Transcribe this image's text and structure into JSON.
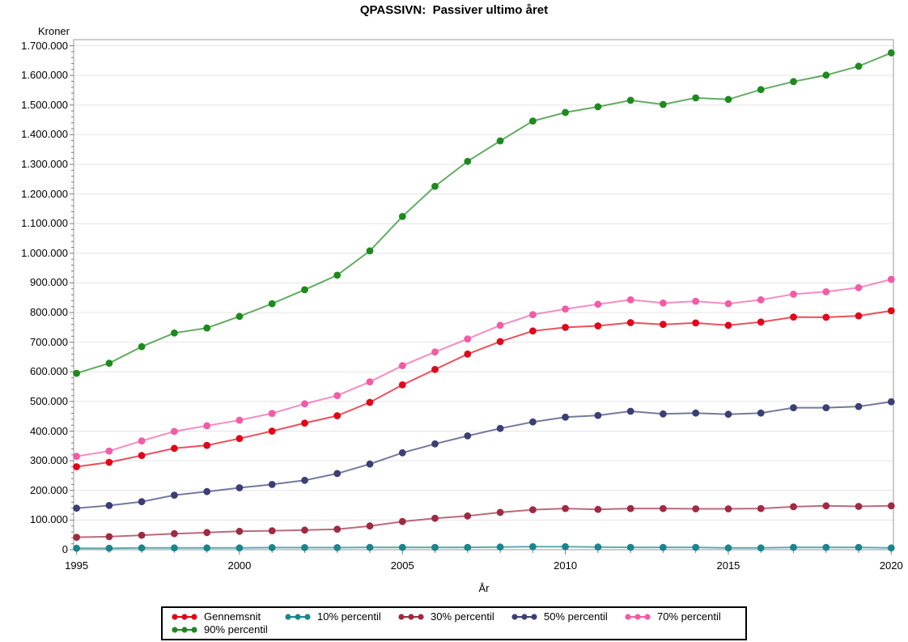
{
  "title": "QPASSIVN:  Passiver ultimo året",
  "colors": {
    "gennemsnit": "#e20619",
    "p10": "#19868e",
    "p30": "#9e2b43",
    "p50": "#3c3f73",
    "p70": "#f25ba6",
    "p90": "#1e8a1e",
    "grid": "#e5e5e5",
    "frame": "#9a9a9a",
    "tick": "#7a7a7a"
  },
  "chart_data": {
    "type": "line",
    "title": "QPASSIVN:  Passiver ultimo året",
    "xlabel": "År",
    "ylabel": "Kroner",
    "x": [
      1995,
      1996,
      1997,
      1998,
      1999,
      2000,
      2001,
      2002,
      2003,
      2004,
      2005,
      2006,
      2007,
      2008,
      2009,
      2010,
      2011,
      2012,
      2013,
      2014,
      2015,
      2016,
      2017,
      2018,
      2019,
      2020
    ],
    "x_tick_labels": [
      "1995",
      "2000",
      "2005",
      "2010",
      "2015",
      "2020"
    ],
    "y_tick_labels": [
      "0",
      "100.000",
      "200.000",
      "300.000",
      "400.000",
      "500.000",
      "600.000",
      "700.000",
      "800.000",
      "900.000",
      "1.000.000",
      "1.100.000",
      "1.200.000",
      "1.300.000",
      "1.400.000",
      "1.500.000",
      "1.600.000",
      "1.700.000"
    ],
    "ylim": [
      0,
      1700000
    ],
    "y_major_step": 100000,
    "y_minor_step": 20000,
    "grid": "horizontal",
    "legend_position": "bottom",
    "marker": "filled-circle",
    "series": [
      {
        "name": "Gennemsnit",
        "color": "#e20619",
        "values": [
          280000,
          295000,
          318000,
          342000,
          352000,
          375000,
          400000,
          427000,
          452000,
          497000,
          556000,
          608000,
          660000,
          702000,
          738000,
          750000,
          755000,
          766000,
          760000,
          765000,
          757000,
          768000,
          785000,
          784000,
          789000,
          806000
        ]
      },
      {
        "name": "10% percentil",
        "color": "#19868e",
        "values": [
          5000,
          5000,
          6000,
          6000,
          6000,
          6000,
          7000,
          7000,
          7000,
          8000,
          8000,
          8000,
          8000,
          9000,
          10000,
          10000,
          9000,
          8000,
          8000,
          8000,
          6000,
          6000,
          8000,
          8000,
          8000,
          6000
        ]
      },
      {
        "name": "30% percentil",
        "color": "#9e2b43",
        "values": [
          42000,
          44000,
          49000,
          54000,
          58000,
          62000,
          64000,
          66000,
          69000,
          80000,
          95000,
          106000,
          114000,
          126000,
          135000,
          139000,
          136000,
          139000,
          139000,
          138000,
          138000,
          139000,
          145000,
          148000,
          146000,
          148000
        ]
      },
      {
        "name": "50% percentil",
        "color": "#3c3f73",
        "values": [
          140000,
          149000,
          162000,
          184000,
          196000,
          209000,
          220000,
          234000,
          257000,
          289000,
          327000,
          357000,
          384000,
          409000,
          431000,
          447000,
          453000,
          467000,
          458000,
          461000,
          457000,
          461000,
          479000,
          479000,
          483000,
          499000
        ]
      },
      {
        "name": "70% percentil",
        "color": "#f25ba6",
        "values": [
          315000,
          333000,
          367000,
          399000,
          418000,
          437000,
          460000,
          492000,
          520000,
          566000,
          621000,
          667000,
          711000,
          757000,
          793000,
          812000,
          828000,
          843000,
          832000,
          838000,
          830000,
          843000,
          862000,
          870000,
          884000,
          912000
        ]
      },
      {
        "name": "90% percentil",
        "color": "#1e8a1e",
        "values": [
          595000,
          629000,
          685000,
          731000,
          748000,
          787000,
          830000,
          877000,
          926000,
          1008000,
          1124000,
          1226000,
          1310000,
          1379000,
          1446000,
          1475000,
          1494000,
          1516000,
          1502000,
          1524000,
          1519000,
          1552000,
          1579000,
          1601000,
          1631000,
          1676000
        ]
      }
    ]
  }
}
